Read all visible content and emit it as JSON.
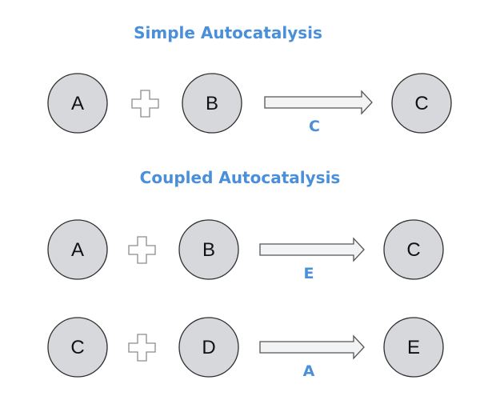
{
  "sections": [
    {
      "title": "Simple Autocatalysis",
      "reactions": [
        {
          "reactants": [
            "A",
            "B"
          ],
          "product": "C",
          "catalyst": "C"
        }
      ]
    },
    {
      "title": "Coupled Autocatalysis",
      "reactions": [
        {
          "reactants": [
            "A",
            "B"
          ],
          "product": "C",
          "catalyst": "E"
        },
        {
          "reactants": [
            "C",
            "D"
          ],
          "product": "E",
          "catalyst": "A"
        }
      ]
    }
  ],
  "colors": {
    "title": "#4a8fd9",
    "catalyst": "#4a8fd9",
    "node_fill": "#d6d8db",
    "node_stroke": "#2f2f2f",
    "arrow_fill": "#f2f3f5"
  },
  "icons": {
    "operator": "plus-icon",
    "reaction": "arrow-right-icon"
  }
}
